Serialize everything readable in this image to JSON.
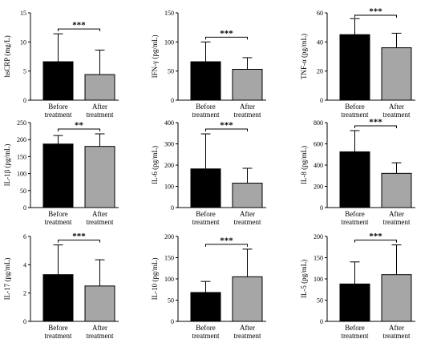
{
  "colors": {
    "before": "#000000",
    "after": "#a6a6a6",
    "axis": "#000000"
  },
  "chart_data": [
    {
      "type": "bar",
      "categories": [
        "Before\ntreatment",
        "After\ntreatment"
      ],
      "ylabel": "hsCRP (mg/L)",
      "ylim": [
        0,
        15
      ],
      "yticks": [
        0,
        5,
        10,
        15
      ],
      "values": [
        6.6,
        4.4
      ],
      "errors": [
        4.8,
        4.2
      ],
      "significance": "***"
    },
    {
      "type": "bar",
      "categories": [
        "Before\ntreatment",
        "After\ntreatment"
      ],
      "ylabel": "IFN-γ (pg/mL)",
      "ylim": [
        0,
        150
      ],
      "yticks": [
        0,
        50,
        100,
        150
      ],
      "values": [
        66,
        53
      ],
      "errors": [
        34,
        20
      ],
      "significance": "***"
    },
    {
      "type": "bar",
      "categories": [
        "Before\ntreatment",
        "After\ntreatment"
      ],
      "ylabel": "TNF-α (pg/mL)",
      "ylim": [
        0,
        60
      ],
      "yticks": [
        0,
        20,
        40,
        60
      ],
      "values": [
        45,
        36
      ],
      "errors": [
        11,
        10
      ],
      "significance": "***"
    },
    {
      "type": "bar",
      "categories": [
        "Before\ntreatment",
        "After\ntreatment"
      ],
      "ylabel": "IL-1β (pg/mL)",
      "ylim": [
        0,
        250
      ],
      "yticks": [
        0,
        50,
        100,
        150,
        200,
        250
      ],
      "values": [
        187,
        180
      ],
      "errors": [
        25,
        37
      ],
      "significance": "**"
    },
    {
      "type": "bar",
      "categories": [
        "Before\ntreatment",
        "After\ntreatment"
      ],
      "ylabel": "IL-6 (pg/mL)",
      "ylim": [
        0,
        400
      ],
      "yticks": [
        0,
        100,
        200,
        300,
        400
      ],
      "values": [
        182,
        115
      ],
      "errors": [
        165,
        70
      ],
      "significance": "***"
    },
    {
      "type": "bar",
      "categories": [
        "Before\ntreatment",
        "After\ntreatment"
      ],
      "ylabel": "IL-8 (pg/mL)",
      "ylim": [
        0,
        800
      ],
      "yticks": [
        0,
        200,
        400,
        600,
        800
      ],
      "values": [
        525,
        322
      ],
      "errors": [
        200,
        100
      ],
      "significance": "***"
    },
    {
      "type": "bar",
      "categories": [
        "Before\ntreatment",
        "After\ntreatment"
      ],
      "ylabel": "IL-17 (pg/mL)",
      "ylim": [
        0,
        6
      ],
      "yticks": [
        0,
        2,
        4,
        6
      ],
      "values": [
        3.3,
        2.5
      ],
      "errors": [
        2.1,
        1.85
      ],
      "significance": "***"
    },
    {
      "type": "bar",
      "categories": [
        "Before\ntreatment",
        "After\ntreatment"
      ],
      "ylabel": "IL-10 (pg/mL)",
      "ylim": [
        0,
        200
      ],
      "yticks": [
        0,
        50,
        100,
        150,
        200
      ],
      "values": [
        68,
        105
      ],
      "errors": [
        26,
        65
      ],
      "significance": "***"
    },
    {
      "type": "bar",
      "categories": [
        "Before\ntreatment",
        "After\ntreatment"
      ],
      "ylabel": "IL-5 (pg/mL)",
      "ylim": [
        0,
        200
      ],
      "yticks": [
        0,
        50,
        100,
        150,
        200
      ],
      "values": [
        88,
        110
      ],
      "errors": [
        52,
        70
      ],
      "significance": "***"
    }
  ]
}
